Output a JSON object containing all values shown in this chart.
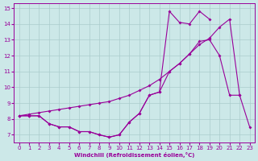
{
  "xlabel": "Windchill (Refroidissement éolien,°C)",
  "ylim": [
    6.5,
    15.3
  ],
  "xlim": [
    -0.5,
    23.5
  ],
  "yticks": [
    7,
    8,
    9,
    10,
    11,
    12,
    13,
    14,
    15
  ],
  "color": "#990099",
  "bg_color": "#cce8e8",
  "grid_color": "#aacccc",
  "line1_x": [
    0,
    1,
    2,
    3,
    4,
    5,
    6,
    7,
    8,
    9,
    10,
    11,
    12,
    13,
    14,
    15,
    16,
    17,
    18,
    19
  ],
  "line1_y": [
    8.2,
    8.2,
    8.2,
    7.7,
    7.5,
    7.5,
    7.2,
    7.2,
    7.0,
    6.85,
    7.0,
    7.8,
    8.35,
    9.5,
    9.7,
    14.8,
    14.1,
    14.0,
    14.8,
    14.3
  ],
  "line2_x": [
    0,
    1,
    2,
    3,
    4,
    5,
    6,
    7,
    8,
    9,
    10,
    11,
    12,
    13,
    14,
    15,
    16,
    17,
    18,
    19,
    20,
    21,
    22
  ],
  "line2_y": [
    8.2,
    8.3,
    8.4,
    8.5,
    8.6,
    8.7,
    8.8,
    8.9,
    9.0,
    9.1,
    9.3,
    9.5,
    9.8,
    10.1,
    10.5,
    11.0,
    11.5,
    12.1,
    12.7,
    13.1,
    13.8,
    14.3,
    9.5
  ],
  "line3_x": [
    0,
    1,
    2,
    3,
    4,
    5,
    6,
    7,
    8,
    9,
    10,
    11,
    12,
    13,
    14,
    15,
    16,
    17,
    18,
    19,
    20,
    21,
    22,
    23
  ],
  "line3_y": [
    8.2,
    8.2,
    8.2,
    7.7,
    7.5,
    7.5,
    7.2,
    7.2,
    7.0,
    6.85,
    7.0,
    7.8,
    8.35,
    9.5,
    9.7,
    11.0,
    11.5,
    12.1,
    12.9,
    13.0,
    12.0,
    9.5,
    9.5,
    7.5
  ]
}
